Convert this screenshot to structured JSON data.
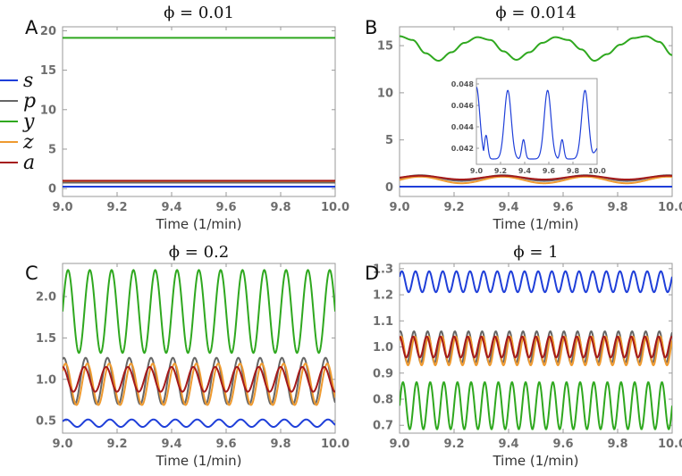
{
  "figure": {
    "legend": [
      {
        "label": "s",
        "color": "#1f3fd9"
      },
      {
        "label": "p",
        "color": "#666666"
      },
      {
        "label": "y",
        "color": "#2fa81f"
      },
      {
        "label": "z",
        "color": "#ef9a2f"
      },
      {
        "label": "a",
        "color": "#a51a1a"
      }
    ]
  },
  "chart_data": [
    {
      "type": "line",
      "panel": "A",
      "title": "ϕ = 0.01",
      "xlabel": "Time (1/min)",
      "ylabel": "",
      "xlim": [
        9.0,
        10.0
      ],
      "ylim": [
        -1,
        20.5
      ],
      "xticks": [
        9.0,
        9.2,
        9.4,
        9.6,
        9.8,
        10.0
      ],
      "xtick_labels": [
        "9.0",
        "9.2",
        "9.4",
        "9.6",
        "9.8",
        "10.0"
      ],
      "yticks": [
        0,
        5,
        10,
        15,
        20
      ],
      "ytick_labels": [
        "0",
        "5",
        "10",
        "15",
        "20"
      ],
      "series": [
        {
          "name": "s",
          "color": "#1f3fd9",
          "base": 0.25,
          "amp": 0,
          "periods": 0
        },
        {
          "name": "p",
          "color": "#666666",
          "base": 0.75,
          "amp": 0,
          "periods": 0
        },
        {
          "name": "y",
          "color": "#2fa81f",
          "base": 19.1,
          "amp": 0,
          "periods": 0
        },
        {
          "name": "z",
          "color": "#ef9a2f",
          "base": 0.95,
          "amp": 0,
          "periods": 0
        },
        {
          "name": "a",
          "color": "#a51a1a",
          "base": 1.0,
          "amp": 0,
          "periods": 0
        }
      ]
    },
    {
      "type": "line",
      "panel": "B",
      "title": "ϕ = 0.014",
      "xlabel": "Time (1/min)",
      "ylabel": "",
      "xlim": [
        9.0,
        10.0
      ],
      "ylim": [
        -1,
        17
      ],
      "xticks": [
        9.0,
        9.2,
        9.4,
        9.6,
        9.8,
        10.0
      ],
      "xtick_labels": [
        "9.0",
        "9.2",
        "9.4",
        "9.6",
        "9.8",
        "10.0"
      ],
      "yticks": [
        0,
        5,
        10,
        15
      ],
      "ytick_labels": [
        "0",
        "5",
        "10",
        "15"
      ],
      "series": [
        {
          "name": "s",
          "color": "#1f3fd9",
          "base": 0.045,
          "amp": 0,
          "periods": 0
        },
        {
          "name": "p",
          "color": "#666666",
          "base": 0.95,
          "amp": 0.3,
          "periods": 3.3
        },
        {
          "name": "y",
          "color": "#2fa81f",
          "y": [
            16.0,
            15.6,
            14.2,
            13.4,
            14.3,
            15.3,
            15.9,
            15.6,
            14.4,
            13.5,
            14.3,
            15.3,
            15.9,
            15.6,
            14.6,
            13.4,
            14.1,
            15.1,
            15.8,
            16.0,
            15.4,
            14.0
          ]
        },
        {
          "name": "z",
          "color": "#ef9a2f",
          "base": 0.75,
          "amp": 0.35,
          "periods": 3.3
        },
        {
          "name": "a",
          "color": "#a51a1a",
          "base": 1.0,
          "amp": 0.2,
          "periods": 3.3
        }
      ],
      "inset": {
        "series": "s",
        "xlim": [
          9.0,
          10.0
        ],
        "ylim": [
          0.0405,
          0.0485
        ],
        "xticks": [
          9.0,
          9.2,
          9.4,
          9.6,
          9.8,
          10.0
        ],
        "xtick_labels": [
          "9.0",
          "9.2",
          "9.4",
          "9.6",
          "9.8",
          "10.0"
        ],
        "yticks": [
          0.042,
          0.044,
          0.046,
          0.048
        ],
        "ytick_labels": [
          "0.042",
          "0.044",
          "0.046",
          "0.048"
        ],
        "peaks": [
          {
            "x": 9.0,
            "y": 0.0477,
            "w": 0.04
          },
          {
            "x": 9.08,
            "y": 0.0432,
            "w": 0.02
          },
          {
            "x": 9.26,
            "y": 0.0474,
            "w": 0.04
          },
          {
            "x": 9.39,
            "y": 0.0428,
            "w": 0.02
          },
          {
            "x": 9.59,
            "y": 0.0474,
            "w": 0.04
          },
          {
            "x": 9.71,
            "y": 0.0428,
            "w": 0.02
          },
          {
            "x": 9.9,
            "y": 0.0474,
            "w": 0.04
          }
        ],
        "baseline": 0.041,
        "end_value": 0.042
      }
    },
    {
      "type": "line",
      "panel": "C",
      "title": "ϕ = 0.2",
      "xlabel": "Time (1/min)",
      "ylabel": "",
      "xlim": [
        9.0,
        10.0
      ],
      "ylim": [
        0.35,
        2.4
      ],
      "xticks": [
        9.0,
        9.2,
        9.4,
        9.6,
        9.8,
        10.0
      ],
      "xtick_labels": [
        "9.0",
        "9.2",
        "9.4",
        "9.6",
        "9.8",
        "10.0"
      ],
      "yticks": [
        0.5,
        1.0,
        1.5,
        2.0
      ],
      "ytick_labels": [
        "0.5",
        "1.0",
        "1.5",
        "2.0"
      ],
      "series": [
        {
          "name": "s",
          "color": "#1f3fd9",
          "base": 0.47,
          "amp": 0.045,
          "periods": 12.5,
          "phase": 0.5
        },
        {
          "name": "p",
          "color": "#666666",
          "base": 0.98,
          "amp": 0.28,
          "periods": 12.5,
          "phase": 1.2
        },
        {
          "name": "y",
          "color": "#2fa81f",
          "base": 1.82,
          "amp": 0.5,
          "periods": 12.5,
          "phase": 0
        },
        {
          "name": "z",
          "color": "#ef9a2f",
          "base": 0.94,
          "amp": 0.25,
          "periods": 12.5,
          "phase": 0.7
        },
        {
          "name": "a",
          "color": "#a51a1a",
          "base": 1.0,
          "amp": 0.15,
          "periods": 12.5,
          "phase": 1.6
        }
      ]
    },
    {
      "type": "line",
      "panel": "D",
      "title": "ϕ = 1",
      "xlabel": "Time (1/min)",
      "ylabel": "",
      "xlim": [
        9.0,
        10.0
      ],
      "ylim": [
        0.67,
        1.32
      ],
      "xticks": [
        9.0,
        9.2,
        9.4,
        9.6,
        9.8,
        10.0
      ],
      "xtick_labels": [
        "9.0",
        "9.2",
        "9.4",
        "9.6",
        "9.8",
        "10.0"
      ],
      "yticks": [
        0.7,
        0.8,
        0.9,
        1.0,
        1.1,
        1.2,
        1.3
      ],
      "ytick_labels": [
        "0.7",
        "0.8",
        "0.9",
        "1.0",
        "1.1",
        "1.2",
        "1.3"
      ],
      "series": [
        {
          "name": "s",
          "color": "#1f3fd9",
          "base": 1.25,
          "amp": 0.04,
          "periods": 20,
          "phase": 0.5
        },
        {
          "name": "p",
          "color": "#666666",
          "base": 1.0,
          "amp": 0.06,
          "periods": 20,
          "phase": 1.2
        },
        {
          "name": "y",
          "color": "#2fa81f",
          "base": 0.775,
          "amp": 0.09,
          "periods": 20,
          "phase": 0
        },
        {
          "name": "z",
          "color": "#ef9a2f",
          "base": 0.985,
          "amp": 0.055,
          "periods": 20,
          "phase": 0.8
        },
        {
          "name": "a",
          "color": "#a51a1a",
          "base": 1.0,
          "amp": 0.04,
          "periods": 20,
          "phase": 1.6
        }
      ]
    }
  ]
}
